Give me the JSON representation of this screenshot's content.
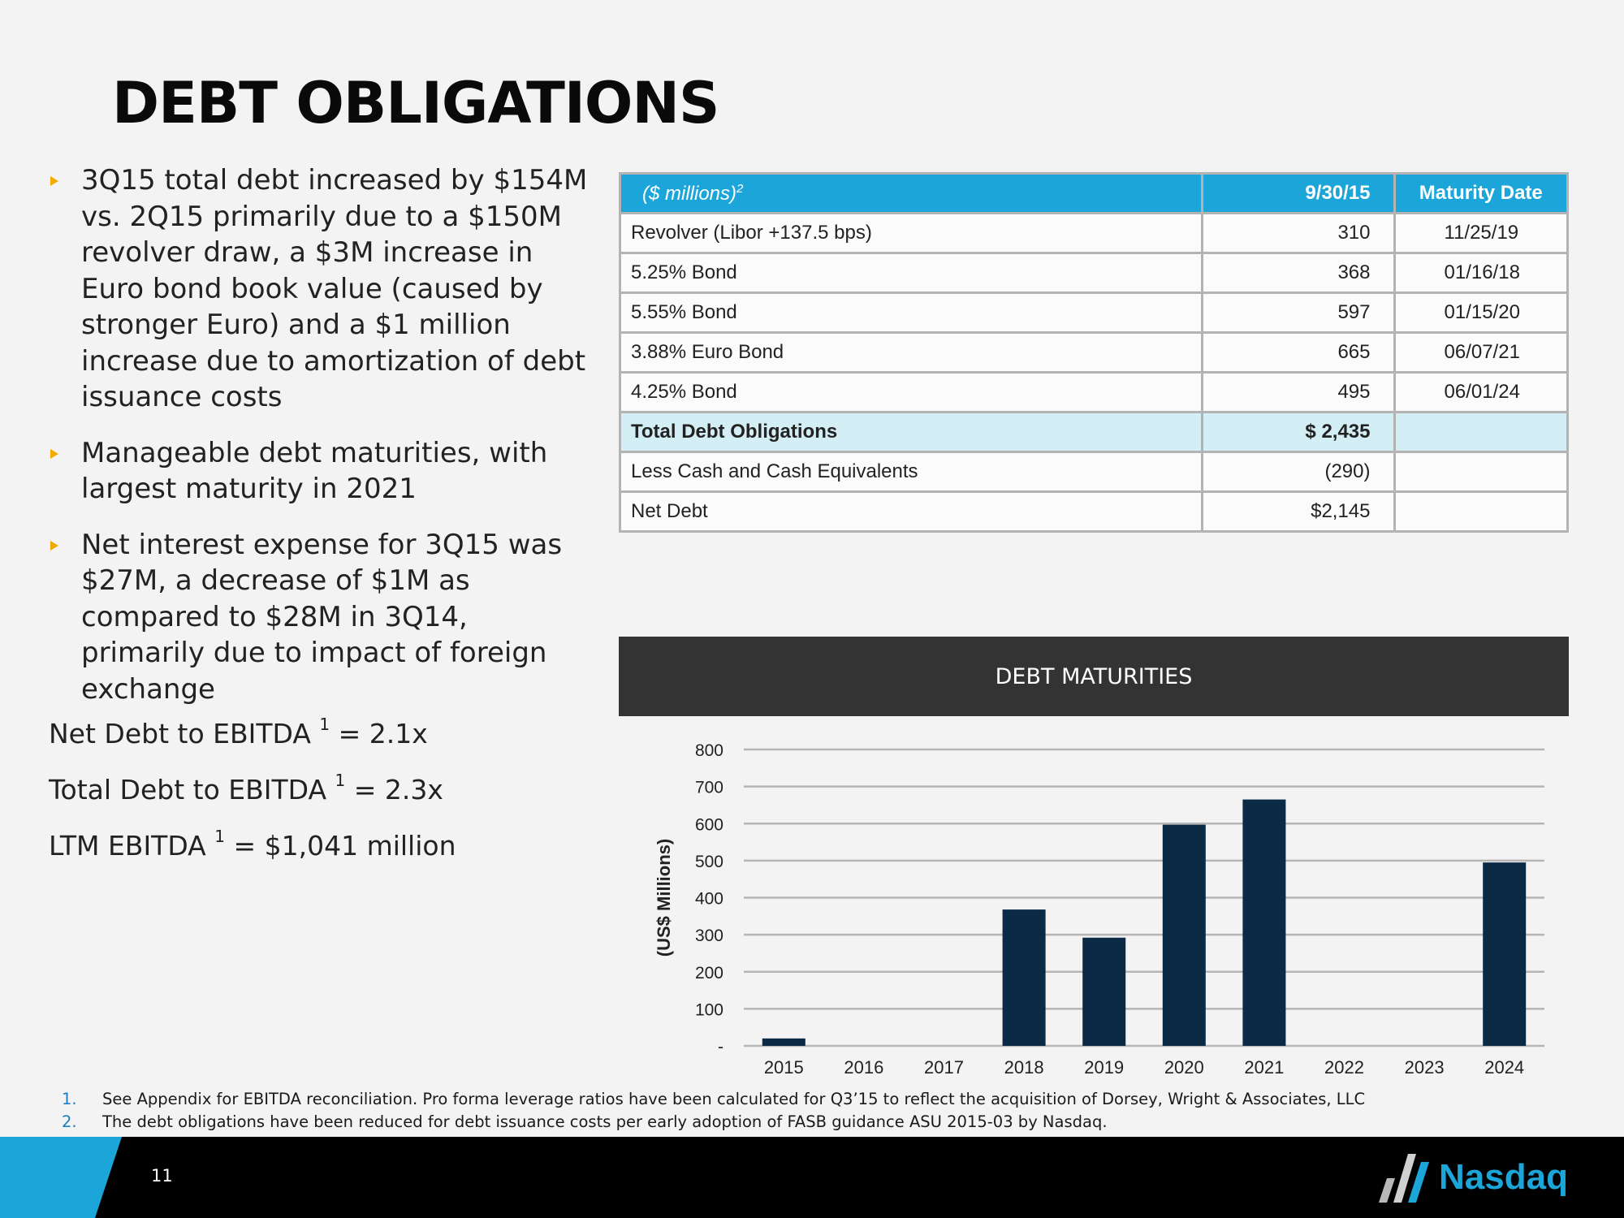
{
  "title": "DEBT OBLIGATIONS",
  "bullets": [
    "3Q15 total debt increased by $154M vs. 2Q15 primarily due to a $150M revolver draw, a $3M increase in Euro bond book value  (caused by stronger Euro) and a $1 million increase due to amortization of debt issuance costs",
    "Manageable debt maturities, with largest maturity in 2021",
    "Net interest expense for 3Q15 was $27M, a decrease of $1M as compared to $28M in 3Q14, primarily due to impact of foreign exchange"
  ],
  "metrics": [
    {
      "text": "Net Debt to EBITDA ",
      "sup": "1",
      "value": " = 2.1x"
    },
    {
      "text": "Total Debt to EBITDA ",
      "sup": "1",
      "value": " = 2.3x"
    },
    {
      "text": "LTM EBITDA ",
      "sup": "1",
      "value": " = $1,041 million"
    }
  ],
  "table": {
    "headers": [
      "($ millions)",
      "9/30/15",
      "Maturity Date"
    ],
    "header_sup": "2",
    "rows": [
      [
        "Revolver (Libor +137.5 bps)",
        "310",
        "11/25/19"
      ],
      [
        "5.25% Bond",
        "368",
        "01/16/18"
      ],
      [
        "5.55% Bond",
        "597",
        "01/15/20"
      ],
      [
        "3.88% Euro Bond",
        "665",
        "06/07/21"
      ],
      [
        "4.25% Bond",
        "495",
        "06/01/24"
      ],
      [
        "Total Debt Obligations",
        "$ 2,435",
        ""
      ],
      [
        "Less Cash and Cash Equivalents",
        "(290)",
        ""
      ],
      [
        "Net Debt",
        "$2,145",
        ""
      ]
    ]
  },
  "chart_header": "DEBT MATURITIES",
  "chart_data": {
    "type": "bar",
    "title": "DEBT MATURITIES",
    "ylabel": "(US$ Millions)",
    "xlabel": "",
    "categories": [
      "2015",
      "2016",
      "2017",
      "2018",
      "2019",
      "2020",
      "2021",
      "2022",
      "2023",
      "2024"
    ],
    "values": [
      20,
      0,
      0,
      368,
      292,
      597,
      665,
      0,
      0,
      495
    ],
    "ylim": [
      0,
      800
    ],
    "yticks": [
      "-",
      "100",
      "200",
      "300",
      "400",
      "500",
      "600",
      "700",
      "800"
    ],
    "grid": true,
    "bar_color": "#0b2a45"
  },
  "footnotes": [
    {
      "n": "1.",
      "text": "See Appendix for EBITDA reconciliation. Pro forma leverage ratios have been calculated for Q3’15 to reflect the acquisition of Dorsey, Wright & Associates, LLC"
    },
    {
      "n": "2.",
      "text": "The debt obligations have been reduced for debt issuance costs per early adoption of FASB guidance ASU 2015-03 by Nasdaq."
    }
  ],
  "page_number": "11",
  "logo_text": "Nasdaq",
  "colors": {
    "accent": "#1ba5d8",
    "bullet": "#f2a900",
    "chart_header_bg": "#333333",
    "total_row_bg": "#d4eef6"
  }
}
